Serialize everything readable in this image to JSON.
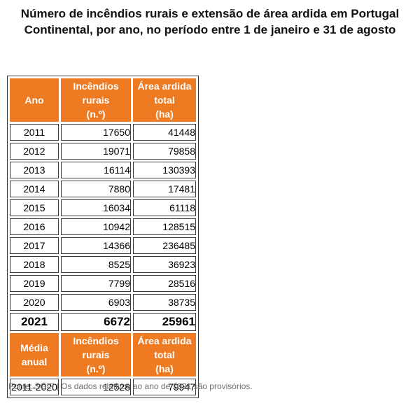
{
  "title_line1": "Número de incêndios rurais e extensão de área ardida em Portugal",
  "title_line2": "Continental, por ano, no período entre 1 de janeiro e 31 de agosto",
  "header": {
    "col1": "Ano",
    "col2_l1": "Incêndios",
    "col2_l2": "rurais",
    "col2_l3": "(n.º)",
    "col3_l1": "Área ardida",
    "col3_l2": "total",
    "col3_l3": "(ha)"
  },
  "rows": [
    {
      "year": "2011",
      "fires": "17650",
      "area": "41448"
    },
    {
      "year": "2012",
      "fires": "19071",
      "area": "79858"
    },
    {
      "year": "2013",
      "fires": "16114",
      "area": "130393"
    },
    {
      "year": "2014",
      "fires": "7880",
      "area": "17481"
    },
    {
      "year": "2015",
      "fires": "16034",
      "area": "61118"
    },
    {
      "year": "2016",
      "fires": "10942",
      "area": "128515"
    },
    {
      "year": "2017",
      "fires": "14366",
      "area": "236485"
    },
    {
      "year": "2018",
      "fires": "8525",
      "area": "36923"
    },
    {
      "year": "2019",
      "fires": "7799",
      "area": "28516"
    },
    {
      "year": "2020",
      "fires": "6903",
      "area": "38735"
    }
  ],
  "total": {
    "year": "2021",
    "fires": "6672",
    "area": "25961"
  },
  "avg_header": {
    "col1_l1": "Média",
    "col1_l2": "anual",
    "col2_l1": "Incêndios",
    "col2_l2": "rurais",
    "col2_l3": "(n.º)",
    "col3_l1": "Área ardida",
    "col3_l2": "total",
    "col3_l3": "(ha)"
  },
  "avg_row": {
    "period": "2011-2020",
    "fires": "12528",
    "area": "79947"
  },
  "footnote": "Fonte: SGIF | Os dados relativos ao ano de 2021 são provisórios.",
  "colors": {
    "header_bg": "#ee7b22",
    "header_text": "#ffffff",
    "border": "#3a3a3a"
  }
}
